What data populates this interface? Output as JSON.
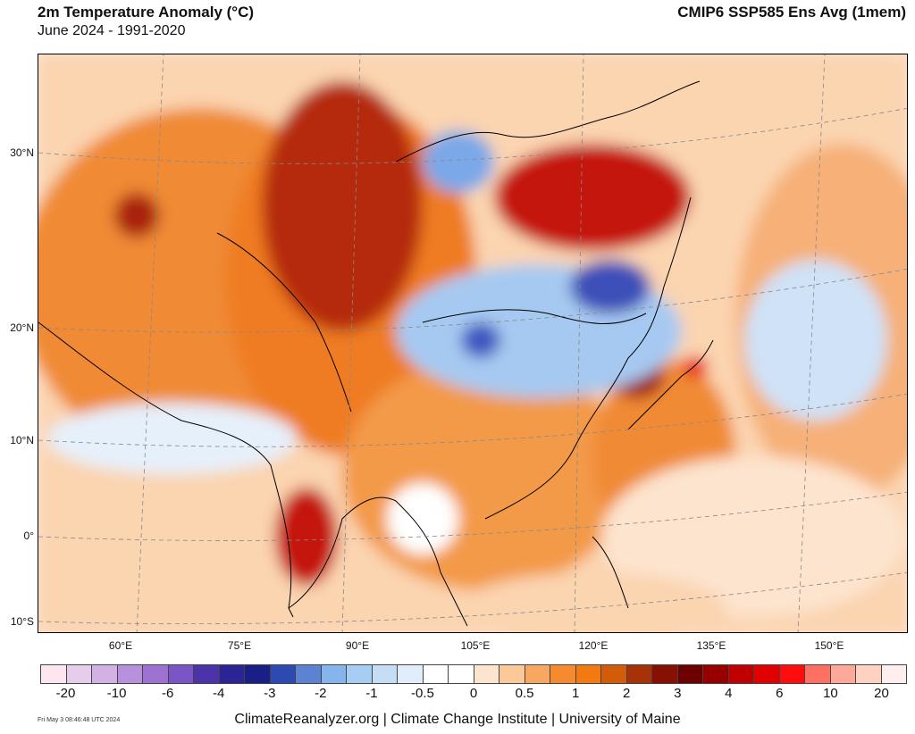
{
  "header": {
    "title": "2m Temperature Anomaly (°C)",
    "subtitle": "June 2024 - 1991-2020",
    "model": "CMIP6 SSP585 Ens Avg (1mem)"
  },
  "axes": {
    "lat_labels": [
      "30°N",
      "20°N",
      "10°N",
      "0°",
      "10°S"
    ],
    "lon_labels": [
      "60°E",
      "75°E",
      "90°E",
      "105°E",
      "120°E",
      "135°E",
      "150°E"
    ]
  },
  "colorbar": {
    "colors": [
      "#fde6ef",
      "#e5cdeb",
      "#d2b1e5",
      "#b891dd",
      "#9d72d1",
      "#7a55c5",
      "#4d33a9",
      "#2a2495",
      "#1a1f86",
      "#2c4ab0",
      "#5b82d3",
      "#86b4ec",
      "#a8cdf2",
      "#c5def6",
      "#e1eefa",
      "#ffffff",
      "#ffffff",
      "#fde4ce",
      "#fbc998",
      "#f8a760",
      "#f58a2f",
      "#f27a10",
      "#d25c0a",
      "#a83207",
      "#861103",
      "#6d0000",
      "#980000",
      "#c00000",
      "#e10000",
      "#ff0c0c",
      "#fe7062",
      "#fea89a",
      "#fed2c1",
      "#feeeed"
    ],
    "labels": [
      "-20",
      "-10",
      "-6",
      "-4",
      "-3",
      "-2",
      "-1",
      "-0.5",
      "0",
      "0.5",
      "1",
      "2",
      "3",
      "4",
      "6",
      "10",
      "20"
    ]
  },
  "footer": {
    "credit": "ClimateReanalyzer.org | Climate Change Institute | University of Maine",
    "timestamp": "Fri May  3 08:46:48 UTC 2024"
  }
}
